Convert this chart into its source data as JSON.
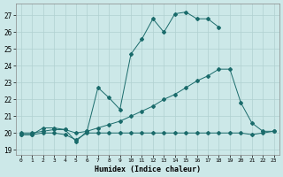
{
  "xlabel": "Humidex (Indice chaleur)",
  "bg_color": "#cce8e8",
  "line_color": "#1a6b6b",
  "grid_color": "#b0d0d0",
  "x_ticks": [
    0,
    1,
    2,
    3,
    4,
    5,
    6,
    7,
    8,
    9,
    10,
    11,
    12,
    13,
    14,
    15,
    16,
    17,
    18,
    19,
    20,
    21,
    22,
    23
  ],
  "y_ticks": [
    19,
    20,
    21,
    22,
    23,
    24,
    25,
    26,
    27
  ],
  "xlim": [
    -0.5,
    23.5
  ],
  "ylim": [
    18.7,
    27.7
  ],
  "line_a_x": [
    0,
    1,
    2,
    3,
    4,
    5,
    6,
    7,
    8,
    9,
    10,
    11,
    12,
    13,
    14,
    15,
    16,
    17,
    18
  ],
  "line_a_y": [
    19.9,
    19.9,
    20.3,
    20.3,
    20.2,
    19.5,
    20.1,
    22.7,
    22.1,
    21.4,
    24.7,
    25.6,
    26.8,
    26.0,
    27.1,
    27.2,
    26.8,
    26.8,
    26.3
  ],
  "line_b_x": [
    0,
    1,
    2,
    3,
    4,
    5,
    6,
    7,
    8,
    9,
    10,
    11,
    12,
    13,
    14,
    15,
    16,
    17,
    18,
    19,
    20,
    21,
    22,
    23
  ],
  "line_b_y": [
    20.0,
    20.0,
    20.1,
    20.2,
    20.2,
    20.0,
    20.1,
    20.3,
    20.5,
    20.7,
    21.0,
    21.3,
    21.6,
    22.0,
    22.3,
    22.7,
    23.1,
    23.4,
    23.8,
    23.8,
    21.8,
    20.6,
    20.1,
    20.1
  ],
  "line_c_x": [
    0,
    1,
    2,
    3,
    4,
    5,
    6,
    7,
    8,
    9,
    10,
    11,
    12,
    13,
    14,
    15,
    16,
    17,
    18,
    19,
    20,
    21,
    22,
    23
  ],
  "line_c_y": [
    19.9,
    19.9,
    20.0,
    20.0,
    19.9,
    19.6,
    20.0,
    20.0,
    20.0,
    20.0,
    20.0,
    20.0,
    20.0,
    20.0,
    20.0,
    20.0,
    20.0,
    20.0,
    20.0,
    20.0,
    20.0,
    19.9,
    20.0,
    20.1
  ],
  "marker": "D",
  "marker_size": 2.0,
  "linewidth": 0.7
}
